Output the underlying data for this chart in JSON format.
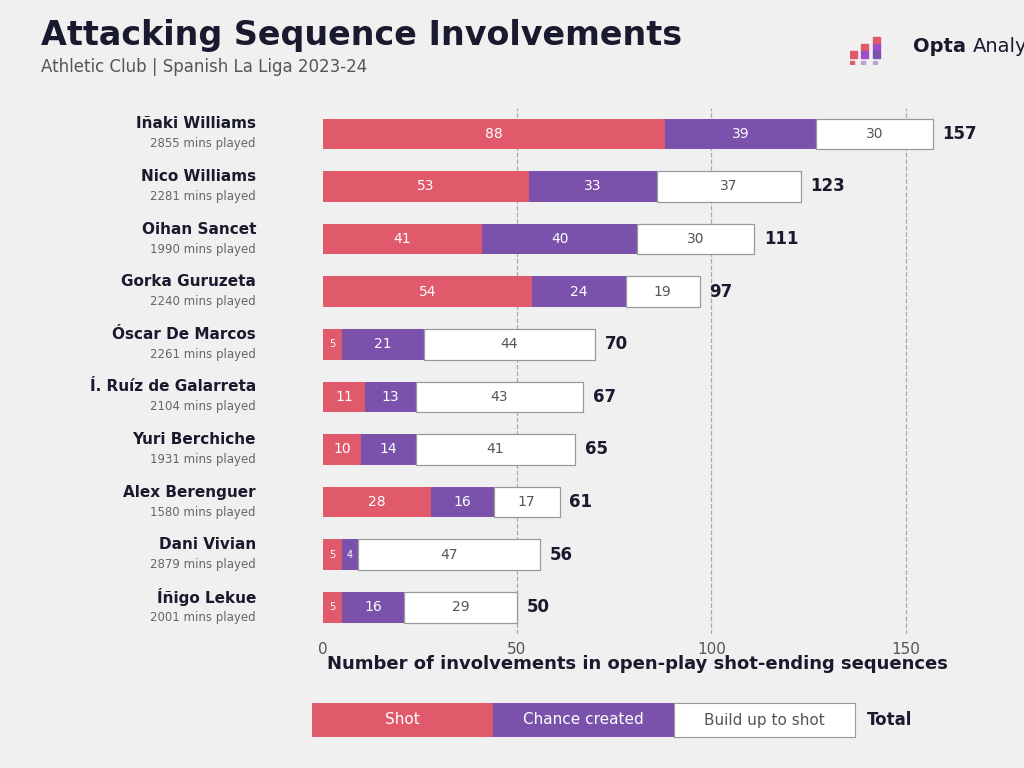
{
  "title": "Attacking Sequence Involvements",
  "subtitle": "Athletic Club | Spanish La Liga 2023-24",
  "xlabel": "Number of involvements in open-play shot-ending sequences",
  "players": [
    {
      "name": "Iñaki Williams",
      "mins": "2855 mins played",
      "shot": 88,
      "chance": 39,
      "buildup": 30,
      "total": 157
    },
    {
      "name": "Nico Williams",
      "mins": "2281 mins played",
      "shot": 53,
      "chance": 33,
      "buildup": 37,
      "total": 123
    },
    {
      "name": "Oihan Sancet",
      "mins": "1990 mins played",
      "shot": 41,
      "chance": 40,
      "buildup": 30,
      "total": 111
    },
    {
      "name": "Gorka Guruzeta",
      "mins": "2240 mins played",
      "shot": 54,
      "chance": 24,
      "buildup": 19,
      "total": 97
    },
    {
      "name": "Óscar De Marcos",
      "mins": "2261 mins played",
      "shot": 5,
      "chance": 21,
      "buildup": 44,
      "total": 70
    },
    {
      "name": "Í. Ruíz de Galarreta",
      "mins": "2104 mins played",
      "shot": 11,
      "chance": 13,
      "buildup": 43,
      "total": 67
    },
    {
      "name": "Yuri Berchiche",
      "mins": "1931 mins played",
      "shot": 10,
      "chance": 14,
      "buildup": 41,
      "total": 65
    },
    {
      "name": "Alex Berenguer",
      "mins": "1580 mins played",
      "shot": 28,
      "chance": 16,
      "buildup": 17,
      "total": 61
    },
    {
      "name": "Dani Vivian",
      "mins": "2879 mins played",
      "shot": 5,
      "chance": 4,
      "buildup": 47,
      "total": 56
    },
    {
      "name": "Íñigo Lekue",
      "mins": "2001 mins played",
      "shot": 5,
      "chance": 16,
      "buildup": 29,
      "total": 50
    }
  ],
  "color_shot": "#e05a6b",
  "color_chance": "#7b52ab",
  "color_buildup": "#ffffff",
  "color_buildup_edge": "#999999",
  "background_color": "#f0f0f0",
  "xlim": [
    0,
    162
  ],
  "xticks": [
    0,
    50,
    100,
    150
  ],
  "title_fontsize": 24,
  "subtitle_fontsize": 12,
  "xlabel_fontsize": 13
}
